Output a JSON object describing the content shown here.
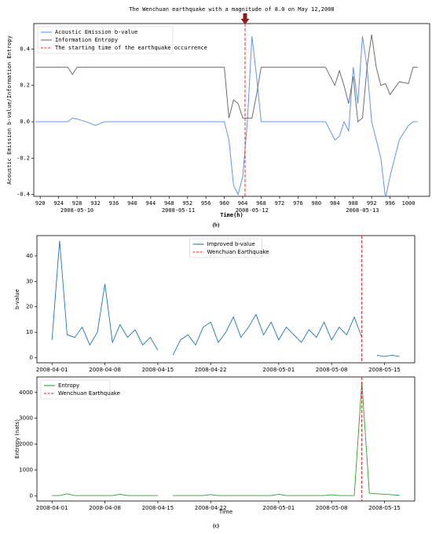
{
  "chart_data": [
    {
      "type": "line",
      "title": "The Wenchuan earthquake with a magnitude of 8.0 on May 12,2008",
      "title_color": "#c00000",
      "ylabel": "Acoustic Emission b-value/Information Entropy",
      "xlabel": "Time(h)",
      "panel_label": "(b)",
      "x": [
        919,
        920,
        922,
        924,
        926,
        927,
        928,
        930,
        932,
        934,
        936,
        940,
        944,
        948,
        952,
        956,
        960,
        961,
        962,
        963,
        964,
        965,
        966,
        967,
        968,
        970,
        974,
        978,
        982,
        984,
        985,
        986,
        987,
        988,
        989,
        990,
        991,
        992,
        993,
        994,
        995,
        996,
        998,
        1000,
        1001,
        1002
      ],
      "series": [
        {
          "name": "Acoustic Emission b-value",
          "color": "#6495ed",
          "values": [
            0,
            0,
            0,
            0,
            0,
            0.02,
            0.015,
            0,
            -0.02,
            0,
            0,
            0,
            0,
            0,
            0,
            0,
            0,
            -0.1,
            -0.35,
            -0.4,
            -0.3,
            0,
            0.47,
            0.25,
            0,
            0,
            0,
            0,
            0,
            -0.1,
            -0.08,
            0,
            -0.05,
            0.3,
            0.1,
            0.47,
            0.3,
            0,
            -0.1,
            -0.2,
            -0.42,
            -0.3,
            -0.1,
            -0.02,
            0,
            0
          ]
        },
        {
          "name": "Information Entropy",
          "color": "#6e6e6e",
          "values": [
            0.3,
            0.3,
            0.3,
            0.3,
            0.3,
            0.26,
            0.3,
            0.3,
            0.3,
            0.3,
            0.3,
            0.3,
            0.3,
            0.3,
            0.3,
            0.3,
            0.3,
            0.02,
            0.12,
            0.1,
            0.02,
            0.02,
            0.02,
            0.15,
            0.3,
            0.3,
            0.3,
            0.3,
            0.3,
            0.2,
            0.28,
            0.2,
            0.1,
            0.25,
            0.0,
            0.02,
            0.3,
            0.48,
            0.3,
            0.2,
            0.21,
            0.15,
            0.22,
            0.21,
            0.3,
            0.3
          ]
        }
      ],
      "event": {
        "name": "The starting time of the earthquake occurrence",
        "x": 964.5,
        "color": "#e8302c"
      },
      "xlim": [
        918.6,
        1004.6
      ],
      "xticks": [
        920,
        924,
        928,
        932,
        936,
        940,
        944,
        948,
        952,
        956,
        960,
        964,
        968,
        972,
        976,
        980,
        984,
        988,
        992,
        996,
        1000
      ],
      "x_groups": [
        {
          "value": 928,
          "label": "2008-05-10"
        },
        {
          "value": 950,
          "label": "2008-05-11"
        },
        {
          "value": 966,
          "label": "2008-05-12"
        },
        {
          "value": 990,
          "label": "2008-05-13"
        }
      ],
      "ylim": [
        -0.41,
        0.54
      ],
      "yticks": [
        -0.4,
        -0.2,
        {
          "value": 0,
          "label": "0.0"
        },
        0.2,
        0.4
      ],
      "legend": "upper left"
    },
    {
      "type": "line",
      "ylabel": "b-value",
      "x": [
        "2008-04-01",
        "2008-04-02",
        "2008-04-03",
        "2008-04-04",
        "2008-04-05",
        "2008-04-06",
        "2008-04-07",
        "2008-04-08",
        "2008-04-09",
        "2008-04-10",
        "2008-04-11",
        "2008-04-12",
        "2008-04-13",
        "2008-04-14",
        "2008-04-15",
        "2008-04-16",
        "2008-04-17",
        "2008-04-18",
        "2008-04-19",
        "2008-04-20",
        "2008-04-21",
        "2008-04-22",
        "2008-04-23",
        "2008-04-24",
        "2008-04-25",
        "2008-04-26",
        "2008-04-27",
        "2008-04-28",
        "2008-04-29",
        "2008-04-30",
        "2008-05-01",
        "2008-05-02",
        "2008-05-03",
        "2008-05-04",
        "2008-05-05",
        "2008-05-06",
        "2008-05-07",
        "2008-05-08",
        "2008-05-09",
        "2008-05-10",
        "2008-05-11",
        "2008-05-12",
        "2008-05-13",
        "2008-05-14",
        "2008-05-15",
        "2008-05-16",
        "2008-05-17"
      ],
      "series": [
        {
          "name": "Improved b-value",
          "color": "#1f77b4",
          "values": [
            7,
            46,
            9,
            8,
            12,
            5,
            10,
            29,
            6,
            13,
            8,
            11,
            5,
            8,
            3,
            null,
            1,
            7,
            9,
            5,
            12,
            14,
            6,
            10,
            16,
            8,
            12,
            17,
            9,
            14,
            7,
            12,
            9,
            6,
            11,
            8,
            14,
            7,
            12,
            9,
            16,
            8,
            null,
            1,
            0.5,
            1,
            0.5
          ]
        }
      ],
      "event": {
        "name": "Wenchuan Earthquake",
        "x": "2008-05-12",
        "color": "#d62728"
      },
      "xlim": [
        "2008-03-30",
        "2008-05-19"
      ],
      "xticks": [
        "2008-04-01",
        "2008-04-08",
        "2008-04-15",
        "2008-04-22",
        "2008-05-01",
        "2008-05-08",
        "2008-05-15"
      ],
      "ylim": [
        -2,
        48
      ],
      "yticks": [
        0,
        10,
        20,
        30,
        40
      ],
      "legend": "upper center"
    },
    {
      "type": "line",
      "ylabel": "Entropy (nats)",
      "xlabel": "Time",
      "panel_label": "(c)",
      "x": [
        "2008-04-01",
        "2008-04-02",
        "2008-04-03",
        "2008-04-04",
        "2008-04-05",
        "2008-04-06",
        "2008-04-07",
        "2008-04-08",
        "2008-04-09",
        "2008-04-10",
        "2008-04-11",
        "2008-04-12",
        "2008-04-13",
        "2008-04-14",
        "2008-04-15",
        "2008-04-16",
        "2008-04-17",
        "2008-04-18",
        "2008-04-19",
        "2008-04-20",
        "2008-04-21",
        "2008-04-22",
        "2008-04-23",
        "2008-04-24",
        "2008-04-25",
        "2008-04-26",
        "2008-04-27",
        "2008-04-28",
        "2008-04-29",
        "2008-04-30",
        "2008-05-01",
        "2008-05-02",
        "2008-05-03",
        "2008-05-04",
        "2008-05-05",
        "2008-05-06",
        "2008-05-07",
        "2008-05-08",
        "2008-05-09",
        "2008-05-10",
        "2008-05-11",
        "2008-05-12",
        "2008-05-13",
        "2008-05-14",
        "2008-05-15",
        "2008-05-16",
        "2008-05-17"
      ],
      "series": [
        {
          "name": "Entropy",
          "color": "#2ca02c",
          "values": [
            10,
            10,
            80,
            10,
            10,
            10,
            10,
            10,
            10,
            60,
            10,
            10,
            10,
            10,
            10,
            null,
            10,
            10,
            10,
            10,
            10,
            50,
            10,
            10,
            10,
            10,
            10,
            10,
            10,
            10,
            60,
            10,
            10,
            10,
            10,
            10,
            10,
            40,
            10,
            10,
            10,
            4400,
            100,
            80,
            60,
            40,
            20
          ]
        }
      ],
      "event": {
        "name": "Wenchuan Earthquake",
        "x": "2008-05-12",
        "color": "#d62728"
      },
      "xlim": [
        "2008-03-30",
        "2008-05-19"
      ],
      "xticks": [
        "2008-04-01",
        "2008-04-08",
        "2008-04-15",
        "2008-04-22",
        "2008-05-01",
        "2008-05-08",
        "2008-05-15"
      ],
      "ylim": [
        -200,
        4600
      ],
      "yticks": [
        0,
        1000,
        2000,
        3000,
        4000
      ],
      "legend": "upper left"
    }
  ]
}
